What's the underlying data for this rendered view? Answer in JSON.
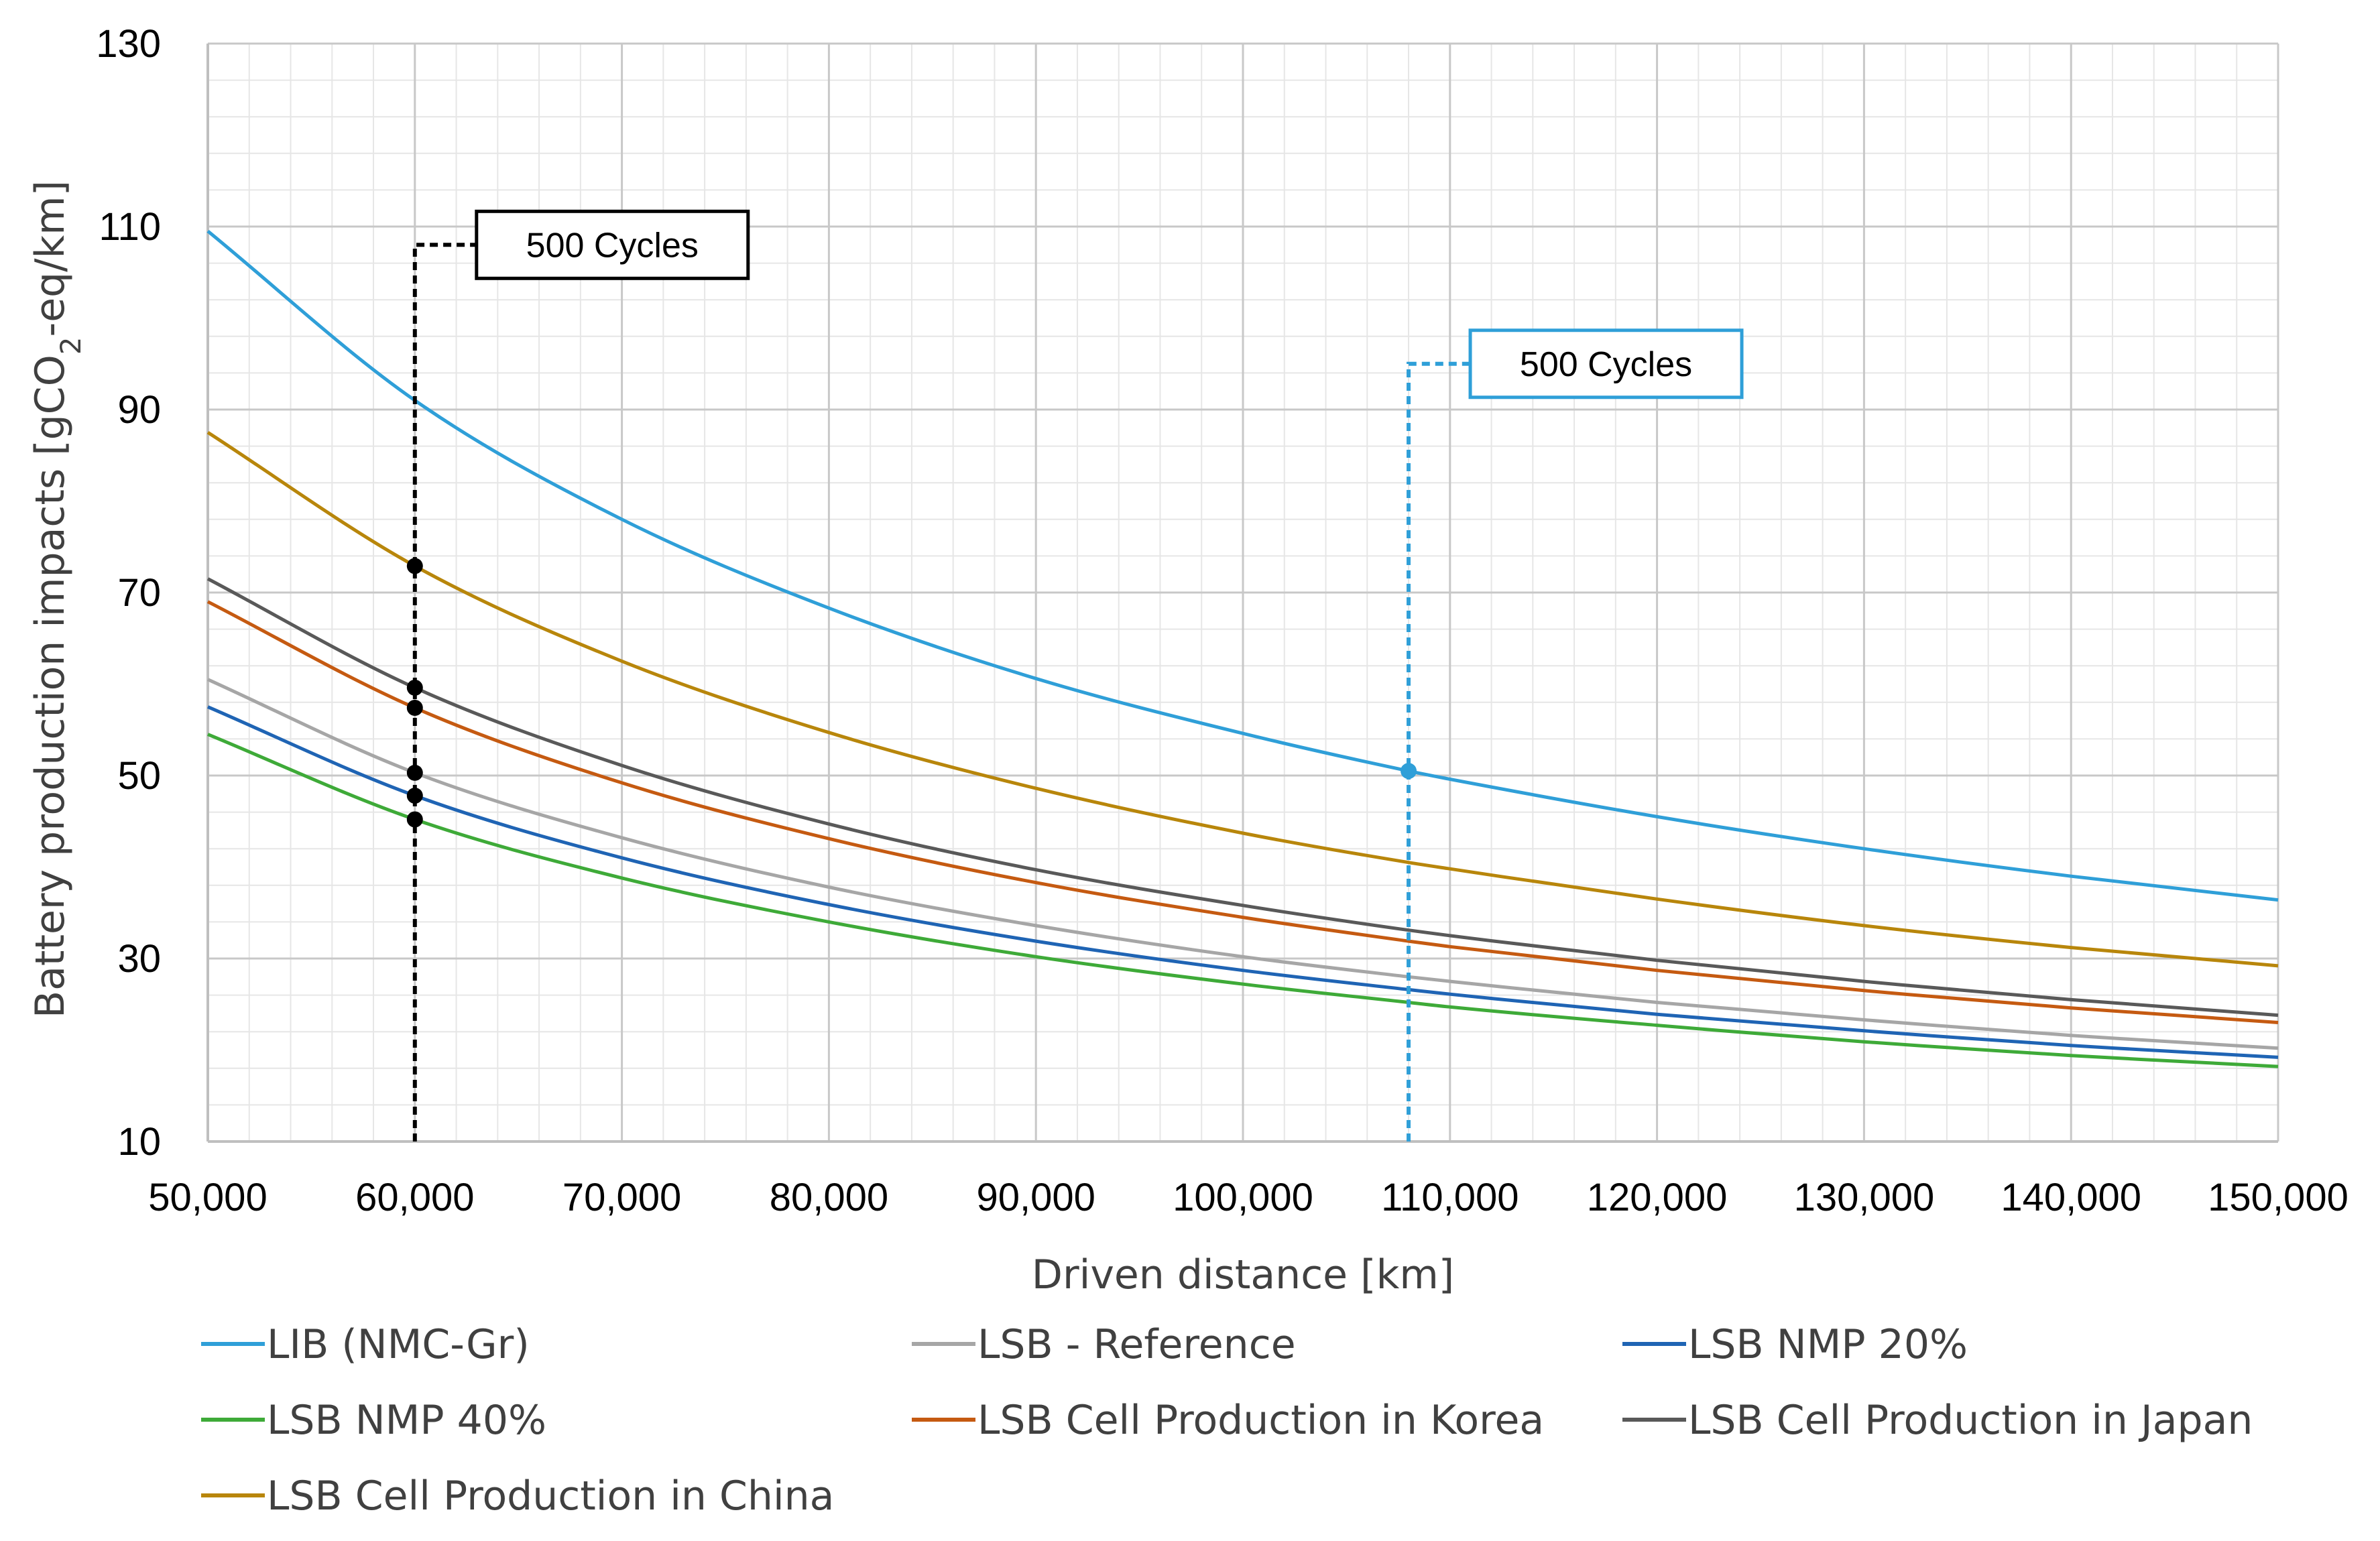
{
  "chart_data": {
    "type": "line",
    "title": "",
    "xlabel": "Driven distance [km]",
    "ylabel_parts": {
      "pre": "Battery production impacts [gCO",
      "sub": "2",
      "post": "-eq/km]"
    },
    "xlim": [
      50000,
      150000
    ],
    "ylim": [
      10,
      130
    ],
    "x_ticks": [
      50000,
      60000,
      70000,
      80000,
      90000,
      100000,
      110000,
      120000,
      130000,
      140000,
      150000
    ],
    "x_tick_labels": [
      "50,000",
      "60,000",
      "70,000",
      "80,000",
      "90,000",
      "100,000",
      "110,000",
      "120,000",
      "130,000",
      "140,000",
      "150,000"
    ],
    "y_ticks": [
      10,
      30,
      50,
      70,
      90,
      110,
      130
    ],
    "y_tick_labels": [
      "10",
      "30",
      "50",
      "70",
      "90",
      "110",
      "130"
    ],
    "grid": true,
    "legend_position": "bottom",
    "x": [
      50000,
      60000,
      70000,
      80000,
      90000,
      100000,
      108000,
      110000,
      120000,
      130000,
      140000,
      150000
    ],
    "series": [
      {
        "name": "LIB (NMC-Gr)",
        "color": "#2f9fd8",
        "values": [
          109.5,
          91.0,
          78.0,
          68.3,
          60.6,
          54.6,
          50.5,
          49.6,
          45.5,
          42.0,
          39.0,
          36.4
        ]
      },
      {
        "name": "LSB - Reference",
        "color": "#a6a6a6",
        "values": [
          60.5,
          50.3,
          43.2,
          37.8,
          33.6,
          30.2,
          28.0,
          27.5,
          25.2,
          23.3,
          21.6,
          20.2
        ]
      },
      {
        "name": "LSB NMP 20%",
        "color": "#1f64b4",
        "values": [
          57.5,
          47.8,
          41.0,
          35.9,
          31.9,
          28.7,
          26.6,
          26.1,
          23.9,
          22.1,
          20.5,
          19.2
        ]
      },
      {
        "name": "LSB NMP 40%",
        "color": "#3eaa38",
        "values": [
          54.5,
          45.2,
          38.8,
          34.0,
          30.2,
          27.2,
          25.2,
          24.7,
          22.7,
          20.9,
          19.4,
          18.2
        ]
      },
      {
        "name": "LSB Cell Production in Korea",
        "color": "#c55a11",
        "values": [
          69.0,
          57.4,
          49.2,
          43.1,
          38.3,
          34.5,
          31.9,
          31.3,
          28.7,
          26.5,
          24.6,
          23.0
        ]
      },
      {
        "name": "LSB Cell Production in Japan",
        "color": "#595959",
        "values": [
          71.5,
          59.6,
          51.1,
          44.7,
          39.7,
          35.8,
          33.1,
          32.5,
          29.8,
          27.5,
          25.5,
          23.8
        ]
      },
      {
        "name": "LSB Cell Production in China",
        "color": "#b8860b",
        "values": [
          87.5,
          72.9,
          62.5,
          54.7,
          48.6,
          43.7,
          40.5,
          39.8,
          36.5,
          33.6,
          31.2,
          29.2
        ]
      }
    ],
    "annotations": [
      {
        "label": "500 Cycles",
        "x": 60000,
        "color": "#000000",
        "label_y": 108,
        "markers": [
          72.9,
          59.6,
          57.4,
          50.3,
          47.8,
          45.2
        ]
      },
      {
        "label": "500 Cycles",
        "x": 108000,
        "color": "#2f9fd8",
        "label_y": 95,
        "markers": [
          50.5
        ]
      }
    ]
  }
}
